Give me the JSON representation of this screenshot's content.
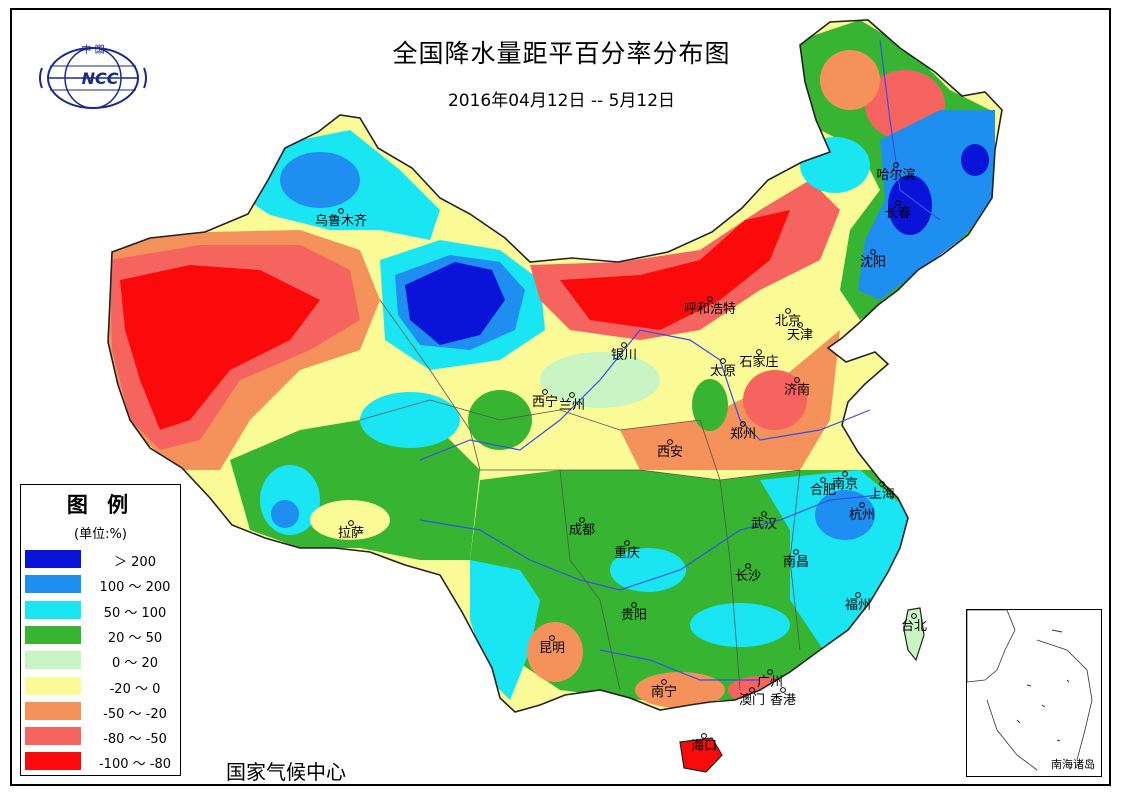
{
  "title": "全国降水量距平百分率分布图",
  "subtitle": "2016年04月12日 -- 5月12日",
  "logo": {
    "text_top": "中 国",
    "text_main": "NCC",
    "icon": "globe-logo-icon",
    "color": "#1a2a8a"
  },
  "legend": {
    "title": "图 例",
    "unit": "(单位:%)",
    "items": [
      {
        "label": "＞ 200",
        "color": "#0a14d8"
      },
      {
        "label": "100 ～ 200",
        "color": "#1e8ff0"
      },
      {
        "label": "50 ～ 100",
        "color": "#19e6f2"
      },
      {
        "label": "20 ～ 50",
        "color": "#37b431"
      },
      {
        "label": "0 ～ 20",
        "color": "#c8f5c3"
      },
      {
        "label": "-20 ～ 0",
        "color": "#fafa96"
      },
      {
        "label": "-50 ～ -20",
        "color": "#f5915a"
      },
      {
        "label": "-80 ～ -50",
        "color": "#f5645f"
      },
      {
        "label": "-100 ～ -80",
        "color": "#fa0a0a"
      }
    ]
  },
  "cities": [
    {
      "name": "乌鲁木齐"
    },
    {
      "name": "哈尔滨"
    },
    {
      "name": "长春"
    },
    {
      "name": "沈阳"
    },
    {
      "name": "呼和浩特"
    },
    {
      "name": "北京"
    },
    {
      "name": "天津"
    },
    {
      "name": "银川"
    },
    {
      "name": "太原"
    },
    {
      "name": "石家庄"
    },
    {
      "name": "西宁"
    },
    {
      "name": "兰州"
    },
    {
      "name": "济南"
    },
    {
      "name": "郑州"
    },
    {
      "name": "西安"
    },
    {
      "name": "合肥"
    },
    {
      "name": "南京"
    },
    {
      "name": "上海"
    },
    {
      "name": "杭州"
    },
    {
      "name": "拉萨"
    },
    {
      "name": "成都"
    },
    {
      "name": "武汉"
    },
    {
      "name": "重庆"
    },
    {
      "name": "南昌"
    },
    {
      "name": "长沙"
    },
    {
      "name": "福州"
    },
    {
      "name": "贵阳"
    },
    {
      "name": "台北"
    },
    {
      "name": "昆明"
    },
    {
      "name": "广州"
    },
    {
      "name": "南宁"
    },
    {
      "name": "澳门"
    },
    {
      "name": "香港"
    },
    {
      "name": "海口"
    }
  ],
  "agency": "国家气候中心",
  "inset_label": "南海诸岛"
}
